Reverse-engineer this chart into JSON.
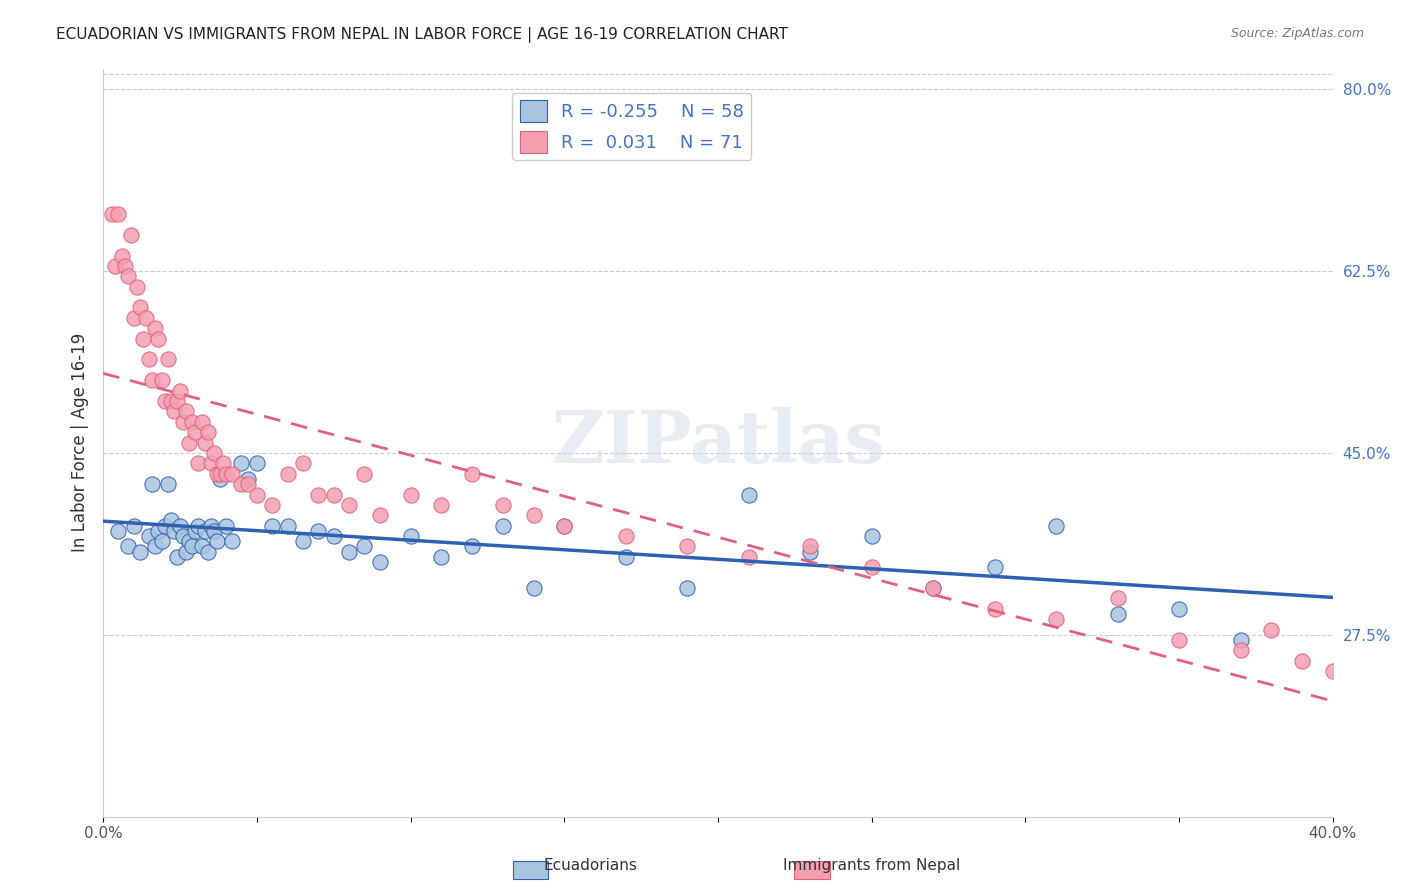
{
  "title": "ECUADORIAN VS IMMIGRANTS FROM NEPAL IN LABOR FORCE | AGE 16-19 CORRELATION CHART",
  "source": "Source: ZipAtlas.com",
  "xlabel": "",
  "ylabel": "In Labor Force | Age 16-19",
  "xlim": [
    0.0,
    0.4
  ],
  "ylim": [
    0.1,
    0.82
  ],
  "xticks": [
    0.0,
    0.05,
    0.1,
    0.15,
    0.2,
    0.25,
    0.3,
    0.35,
    0.4
  ],
  "xtick_labels": [
    "0.0%",
    "",
    "",
    "",
    "",
    "",
    "",
    "",
    "40.0%"
  ],
  "ytick_right": [
    0.275,
    0.45,
    0.625,
    0.8
  ],
  "ytick_right_labels": [
    "27.5%",
    "45.0%",
    "62.5%",
    "80.0%"
  ],
  "blue_color": "#a8c4e0",
  "pink_color": "#f4a0b0",
  "blue_line_color": "#3060b0",
  "pink_line_color": "#e06080",
  "R_blue": -0.255,
  "N_blue": 58,
  "R_pink": 0.031,
  "N_pink": 71,
  "watermark": "ZIPatlas",
  "legend_label_blue": "Ecuadorians",
  "legend_label_pink": "Immigrants from Nepal",
  "blue_scatter_x": [
    0.005,
    0.008,
    0.01,
    0.012,
    0.015,
    0.016,
    0.017,
    0.018,
    0.019,
    0.02,
    0.021,
    0.022,
    0.023,
    0.024,
    0.025,
    0.026,
    0.027,
    0.028,
    0.029,
    0.03,
    0.031,
    0.032,
    0.033,
    0.034,
    0.035,
    0.036,
    0.037,
    0.038,
    0.04,
    0.042,
    0.045,
    0.047,
    0.05,
    0.055,
    0.06,
    0.065,
    0.07,
    0.075,
    0.08,
    0.085,
    0.09,
    0.1,
    0.11,
    0.12,
    0.13,
    0.14,
    0.15,
    0.17,
    0.19,
    0.21,
    0.23,
    0.25,
    0.27,
    0.29,
    0.31,
    0.33,
    0.35,
    0.37
  ],
  "blue_scatter_y": [
    0.375,
    0.36,
    0.38,
    0.355,
    0.37,
    0.42,
    0.36,
    0.375,
    0.365,
    0.38,
    0.42,
    0.385,
    0.375,
    0.35,
    0.38,
    0.37,
    0.355,
    0.365,
    0.36,
    0.375,
    0.38,
    0.36,
    0.375,
    0.355,
    0.38,
    0.375,
    0.365,
    0.425,
    0.38,
    0.365,
    0.44,
    0.425,
    0.44,
    0.38,
    0.38,
    0.365,
    0.375,
    0.37,
    0.355,
    0.36,
    0.345,
    0.37,
    0.35,
    0.36,
    0.38,
    0.32,
    0.38,
    0.35,
    0.32,
    0.41,
    0.355,
    0.37,
    0.32,
    0.34,
    0.38,
    0.295,
    0.3,
    0.27
  ],
  "pink_scatter_x": [
    0.003,
    0.004,
    0.005,
    0.006,
    0.007,
    0.008,
    0.009,
    0.01,
    0.011,
    0.012,
    0.013,
    0.014,
    0.015,
    0.016,
    0.017,
    0.018,
    0.019,
    0.02,
    0.021,
    0.022,
    0.023,
    0.024,
    0.025,
    0.026,
    0.027,
    0.028,
    0.029,
    0.03,
    0.031,
    0.032,
    0.033,
    0.034,
    0.035,
    0.036,
    0.037,
    0.038,
    0.039,
    0.04,
    0.042,
    0.045,
    0.047,
    0.05,
    0.055,
    0.06,
    0.065,
    0.07,
    0.075,
    0.08,
    0.085,
    0.09,
    0.1,
    0.11,
    0.12,
    0.13,
    0.14,
    0.15,
    0.17,
    0.19,
    0.21,
    0.23,
    0.25,
    0.27,
    0.29,
    0.31,
    0.33,
    0.35,
    0.37,
    0.38,
    0.39,
    0.4
  ],
  "pink_scatter_y": [
    0.68,
    0.63,
    0.68,
    0.64,
    0.63,
    0.62,
    0.66,
    0.58,
    0.61,
    0.59,
    0.56,
    0.58,
    0.54,
    0.52,
    0.57,
    0.56,
    0.52,
    0.5,
    0.54,
    0.5,
    0.49,
    0.5,
    0.51,
    0.48,
    0.49,
    0.46,
    0.48,
    0.47,
    0.44,
    0.48,
    0.46,
    0.47,
    0.44,
    0.45,
    0.43,
    0.43,
    0.44,
    0.43,
    0.43,
    0.42,
    0.42,
    0.41,
    0.4,
    0.43,
    0.44,
    0.41,
    0.41,
    0.4,
    0.43,
    0.39,
    0.41,
    0.4,
    0.43,
    0.4,
    0.39,
    0.38,
    0.37,
    0.36,
    0.35,
    0.36,
    0.34,
    0.32,
    0.3,
    0.29,
    0.31,
    0.27,
    0.26,
    0.28,
    0.25,
    0.24
  ]
}
